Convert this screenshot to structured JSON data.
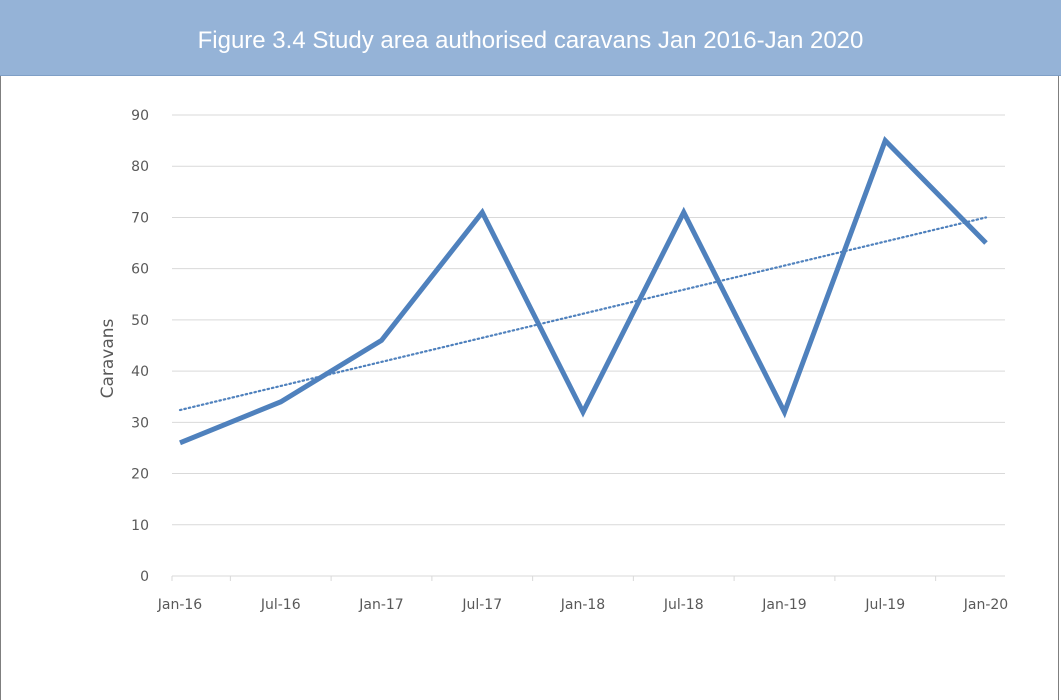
{
  "figure": {
    "title": "Figure 3.4 Study area authorised caravans Jan 2016-Jan 2020"
  },
  "colors": {
    "header_background": "#95b3d7",
    "series_line": "#4f81bd",
    "trendline": "#4f81bd",
    "gridline": "#d9d9d9",
    "axis_text": "#595959"
  },
  "chart_data": {
    "type": "line",
    "categories": [
      "Jan-16",
      "Jul-16",
      "Jan-17",
      "Jul-17",
      "Jan-18",
      "Jul-18",
      "Jan-19",
      "Jul-19",
      "Jan-20"
    ],
    "series": [
      {
        "values": [
          26,
          34,
          46,
          71,
          32,
          71,
          32,
          85,
          65
        ],
        "style": "solid"
      }
    ],
    "trendline": {
      "type": "linear",
      "style": "dotted",
      "start_value": 32.4,
      "end_value": 70
    },
    "xlabel": "",
    "ylabel": "Caravans",
    "ylim": [
      0,
      90
    ],
    "yticks": [
      0,
      10,
      20,
      30,
      40,
      50,
      60,
      70,
      80,
      90
    ],
    "grid": true,
    "legend": "none"
  }
}
